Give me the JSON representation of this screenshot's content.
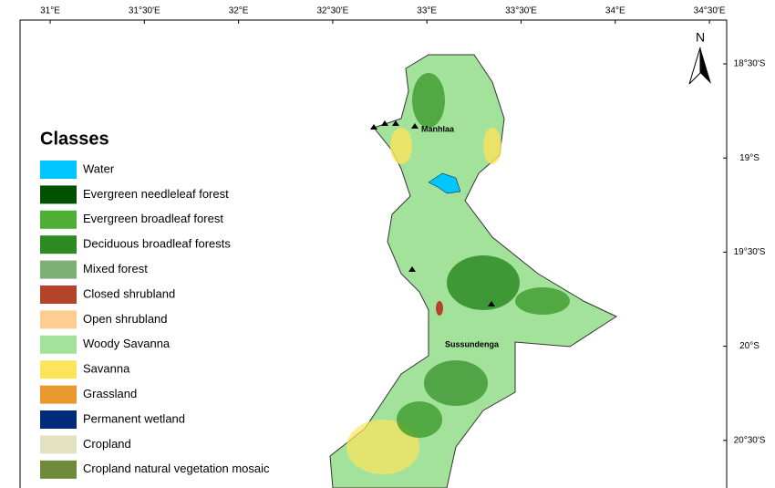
{
  "north_arrow": "N",
  "longitude_labels": [
    "31°E",
    "31°30'E",
    "32°E",
    "32°30'E",
    "33°E",
    "33°30'E",
    "34°E",
    "34°30'E"
  ],
  "latitude_labels": [
    "18°30'S",
    "19°S",
    "19°30'S",
    "20°S",
    "20°30'S"
  ],
  "legend": {
    "title": "Classes",
    "items": [
      {
        "label": "Water",
        "color": "#00c5ff"
      },
      {
        "label": "Evergreen needleleaf forest",
        "color": "#005200"
      },
      {
        "label": "Evergreen broadleaf forest",
        "color": "#4caf34"
      },
      {
        "label": "Deciduous broadleaf forests",
        "color": "#2e8b24"
      },
      {
        "label": "Mixed forest",
        "color": "#7fb077"
      },
      {
        "label": "Closed shrubland",
        "color": "#b5432a"
      },
      {
        "label": "Open shrubland",
        "color": "#fdcd91"
      },
      {
        "label": "Woody Savanna",
        "color": "#a3e29a"
      },
      {
        "label": "Savanna",
        "color": "#fde45c"
      },
      {
        "label": "Grassland",
        "color": "#e8982c"
      },
      {
        "label": "Permanent wetland",
        "color": "#002a7a"
      },
      {
        "label": "Cropland",
        "color": "#e3e3c2"
      },
      {
        "label": "Cropland natural vegetation mosaic",
        "color": "#6f8a3a"
      }
    ]
  },
  "places": [
    "Manhlaa",
    "Sussundenga"
  ]
}
